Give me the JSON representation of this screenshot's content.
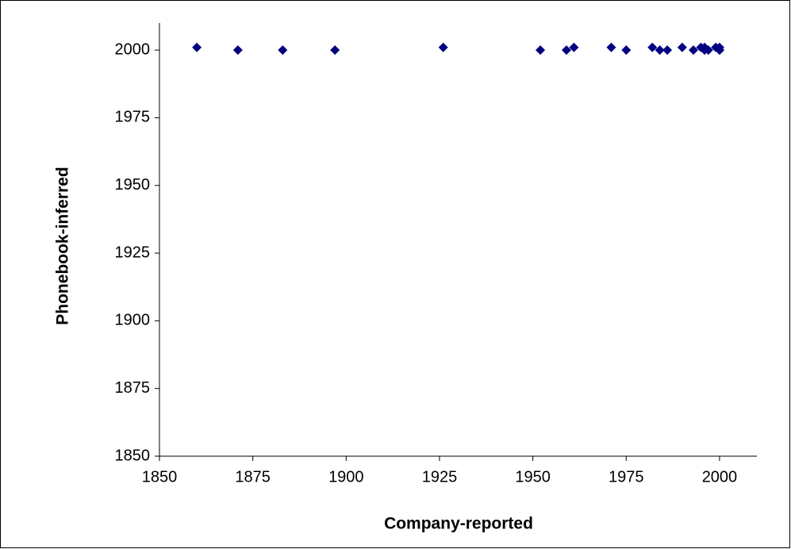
{
  "chart_data": {
    "type": "scatter",
    "x_label": "Company-reported",
    "y_label": "Phonebook-inferred",
    "x": [
      1860,
      1871,
      1883,
      1897,
      1926,
      1952,
      1959,
      1961,
      1971,
      1975,
      1982,
      1984,
      1986,
      1990,
      1993,
      1995,
      1996,
      1996,
      1997,
      1999,
      2000,
      2000,
      2000
    ],
    "values": [
      2001,
      2000,
      2000,
      2000,
      2001,
      2000,
      2000,
      2001,
      2001,
      2000,
      2001,
      2000,
      2000,
      2001,
      2000,
      2001,
      2000,
      2001,
      2000,
      2001,
      2000,
      2001,
      2000
    ],
    "color": "#000080",
    "xlim": [
      1850,
      2010
    ],
    "xticks": [
      1850,
      1875,
      1900,
      1925,
      1950,
      1975,
      2000
    ],
    "ylim": [
      1850,
      2010
    ],
    "yticks": [
      1850,
      1875,
      1900,
      1925,
      1950,
      1975,
      2000
    ],
    "grid": false
  }
}
